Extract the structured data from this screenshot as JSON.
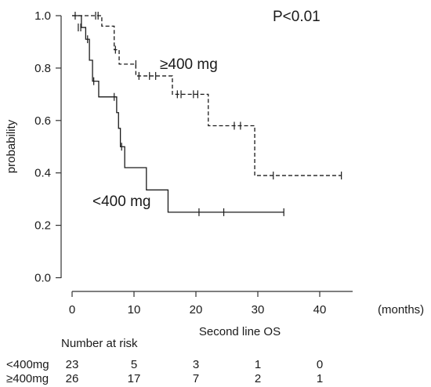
{
  "chart_data": {
    "type": "line",
    "title": "",
    "xlabel": "Second line OS",
    "xunit": "(months)",
    "ylabel": "probability",
    "xlim": [
      0,
      45
    ],
    "ylim": [
      0,
      1.0
    ],
    "x_ticks": [
      0,
      10,
      20,
      30,
      40
    ],
    "y_ticks": [
      0.0,
      0.2,
      0.4,
      0.6,
      0.8,
      1.0
    ],
    "y_tick_labels": [
      "0.0",
      "0.2",
      "0.4",
      "0.6",
      "0.8",
      "1.0"
    ],
    "grid": false,
    "legend": "none",
    "p_value": "P<0.01",
    "series": [
      {
        "name": "<400 mg",
        "line_style": "solid",
        "color": "#1a1a1a",
        "steps": [
          {
            "x": 0,
            "y": 1.0
          },
          {
            "x": 1.5,
            "y": 0.955
          },
          {
            "x": 2.2,
            "y": 0.91
          },
          {
            "x": 2.8,
            "y": 0.83
          },
          {
            "x": 3.3,
            "y": 0.75
          },
          {
            "x": 4.3,
            "y": 0.69
          },
          {
            "x": 7.2,
            "y": 0.63
          },
          {
            "x": 7.5,
            "y": 0.57
          },
          {
            "x": 7.8,
            "y": 0.5
          },
          {
            "x": 8.5,
            "y": 0.42
          },
          {
            "x": 12.0,
            "y": 0.335
          },
          {
            "x": 15.5,
            "y": 0.25
          }
        ],
        "end_x": 34.2,
        "censored": [
          {
            "x": 1.0,
            "y": 0.955
          },
          {
            "x": 1.4,
            "y": 0.955
          },
          {
            "x": 2.5,
            "y": 0.91
          },
          {
            "x": 3.5,
            "y": 0.75
          },
          {
            "x": 6.8,
            "y": 0.69
          },
          {
            "x": 8.0,
            "y": 0.5
          },
          {
            "x": 20.5,
            "y": 0.25
          },
          {
            "x": 24.5,
            "y": 0.25
          },
          {
            "x": 34.2,
            "y": 0.25
          }
        ]
      },
      {
        "name": "≥400 mg",
        "line_style": "dashed",
        "color": "#1a1a1a",
        "steps": [
          {
            "x": 0,
            "y": 1.0
          },
          {
            "x": 4.8,
            "y": 0.96
          },
          {
            "x": 6.8,
            "y": 0.87
          },
          {
            "x": 7.6,
            "y": 0.815
          },
          {
            "x": 10.3,
            "y": 0.77
          },
          {
            "x": 16.2,
            "y": 0.7
          },
          {
            "x": 22.0,
            "y": 0.58
          },
          {
            "x": 29.5,
            "y": 0.39
          }
        ],
        "end_x": 43.5,
        "censored": [
          {
            "x": 0.5,
            "y": 1.0
          },
          {
            "x": 3.8,
            "y": 1.0
          },
          {
            "x": 4.2,
            "y": 1.0
          },
          {
            "x": 7.0,
            "y": 0.87
          },
          {
            "x": 10.3,
            "y": 0.815
          },
          {
            "x": 10.8,
            "y": 0.77
          },
          {
            "x": 12.5,
            "y": 0.77
          },
          {
            "x": 13.5,
            "y": 0.77
          },
          {
            "x": 17.0,
            "y": 0.7
          },
          {
            "x": 17.6,
            "y": 0.7
          },
          {
            "x": 19.6,
            "y": 0.7
          },
          {
            "x": 20.3,
            "y": 0.7
          },
          {
            "x": 26.2,
            "y": 0.58
          },
          {
            "x": 27.2,
            "y": 0.58
          },
          {
            "x": 32.5,
            "y": 0.39
          },
          {
            "x": 43.5,
            "y": 0.39
          }
        ]
      }
    ],
    "number_at_risk": {
      "heading": "Number at risk",
      "rows": [
        {
          "label": "<400mg",
          "counts": [
            "23",
            "5",
            "3",
            "1",
            "0"
          ]
        },
        {
          "label": "≥400mg",
          "counts": [
            "26",
            "17",
            "7",
            "2",
            "1"
          ]
        }
      ]
    }
  }
}
